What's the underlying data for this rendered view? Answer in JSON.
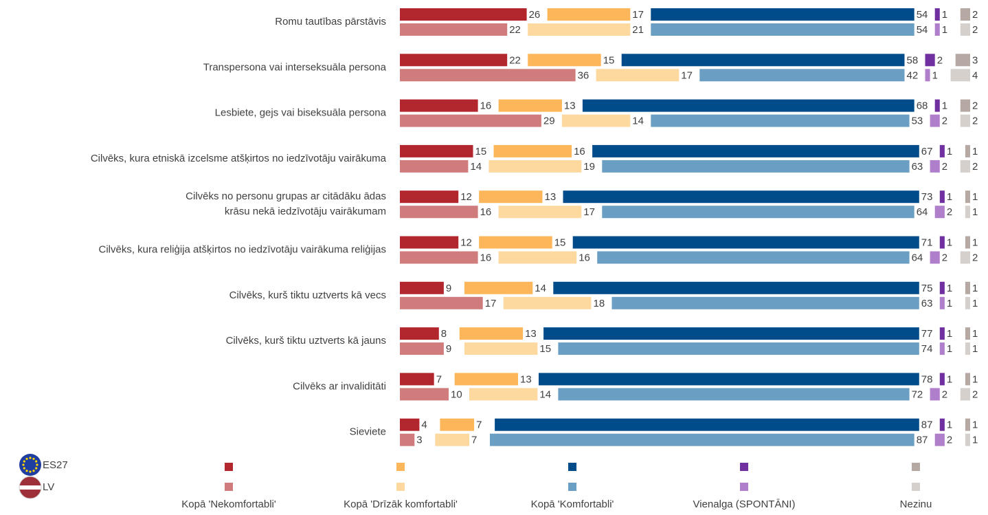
{
  "chart_data": {
    "type": "stacked-bar-horizontal",
    "groups": [
      "ES27",
      "LV"
    ],
    "categories": [
      "Romu tautības pārstāvis",
      "Transpersona vai interseksuāla persona",
      "Lesbiete, gejs vai biseksuāla persona",
      "Cilvēks, kura etniskā izcelsme atšķirtos no iedzīvotāju vairākuma",
      [
        "Cilvēks no personu grupas ar citādāku ādas",
        "krāsu nekā iedzīvotāju vairākumam"
      ],
      "Cilvēks, kura reliģija atšķirtos no iedzīvotāju vairākuma reliģijas",
      "Cilvēks, kurš tiktu uztverts kā vecs",
      "Cilvēks, kurš tiktu uztverts kā jauns",
      "Cilvēks ar invaliditāti",
      "Sieviete"
    ],
    "series": [
      {
        "name": "Kopā 'Nekomfortabli'",
        "colors": [
          "#b2262d",
          "#d07b7c"
        ],
        "values": [
          [
            26,
            22
          ],
          [
            22,
            36
          ],
          [
            16,
            29
          ],
          [
            15,
            14
          ],
          [
            12,
            16
          ],
          [
            12,
            16
          ],
          [
            9,
            17
          ],
          [
            8,
            9
          ],
          [
            7,
            10
          ],
          [
            4,
            3
          ]
        ]
      },
      {
        "name": "Kopā 'Drīzāk komfortabli'",
        "colors": [
          "#fdb75a",
          "#fdd9a0"
        ],
        "values": [
          [
            17,
            21
          ],
          [
            15,
            17
          ],
          [
            13,
            14
          ],
          [
            16,
            19
          ],
          [
            13,
            17
          ],
          [
            15,
            16
          ],
          [
            14,
            18
          ],
          [
            13,
            15
          ],
          [
            13,
            14
          ],
          [
            7,
            7
          ]
        ]
      },
      {
        "name": "Kopā 'Komfortabli'",
        "colors": [
          "#004c8a",
          "#6a9fc3"
        ],
        "values": [
          [
            54,
            54
          ],
          [
            58,
            42
          ],
          [
            68,
            53
          ],
          [
            67,
            63
          ],
          [
            73,
            64
          ],
          [
            71,
            64
          ],
          [
            75,
            63
          ],
          [
            77,
            74
          ],
          [
            78,
            72
          ],
          [
            87,
            87
          ]
        ]
      },
      {
        "name": "Vienalga (SPONTĀNI)",
        "colors": [
          "#7030a0",
          "#b07fcc"
        ],
        "values": [
          [
            1,
            1
          ],
          [
            2,
            1
          ],
          [
            1,
            2
          ],
          [
            1,
            2
          ],
          [
            1,
            2
          ],
          [
            1,
            2
          ],
          [
            1,
            1
          ],
          [
            1,
            1
          ],
          [
            1,
            2
          ],
          [
            1,
            2
          ]
        ]
      },
      {
        "name": "Nezinu",
        "colors": [
          "#b6a9a3",
          "#d6d0cc"
        ],
        "values": [
          [
            2,
            2
          ],
          [
            3,
            4
          ],
          [
            2,
            2
          ],
          [
            1,
            2
          ],
          [
            1,
            1
          ],
          [
            1,
            2
          ],
          [
            1,
            1
          ],
          [
            1,
            1
          ],
          [
            1,
            2
          ],
          [
            1,
            1
          ]
        ]
      }
    ]
  }
}
